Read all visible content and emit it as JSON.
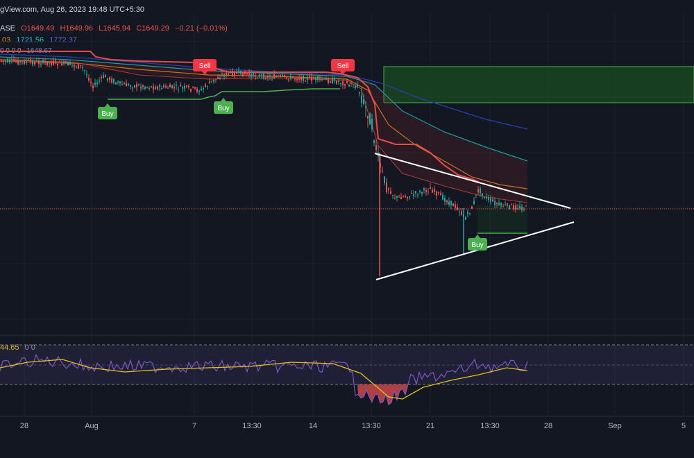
{
  "header": {
    "source_line": "gView.com, Aug 26, 2023 19:48 UTC+5:30",
    "symbol_suffix": "ASE",
    "open": "O1649.49",
    "high": "H1649.96",
    "low": "L1645.94",
    "close": "C1649.29",
    "change": "−0.21 (−0.01%)",
    "ma_a": ".03",
    "ma_b": "1721.56",
    "ma_c": "1772.37",
    "ma_row_zeros": "0 0 0 0",
    "ma_d": "1648.67",
    "rsi_value": "44.65",
    "rsi_zeros": "0 0"
  },
  "colors": {
    "background": "#131722",
    "bull": "#26a69a",
    "bear": "#ef5350",
    "buy_signal": "#4caf50",
    "sell_signal": "#f23645",
    "ema_fast": "#e84b4b",
    "ema_mid": "#c8731f",
    "ema_teal": "#1a9e9e",
    "ema_slow": "#2a3fb5",
    "rsi_line": "#7e57c2",
    "rsi_ma": "#e5c21a",
    "supply_zone": "#2e7d32",
    "trendline": "#ffffff"
  },
  "chart_data": {
    "type": "candlestick",
    "title": "",
    "time_axis_labels": [
      "28",
      "Aug",
      "7",
      "13:30",
      "14",
      "13:30",
      "21",
      "13:30",
      "28",
      "Sep",
      "5"
    ],
    "signals": [
      {
        "label": "Buy",
        "type": "buy",
        "t": 0.155
      },
      {
        "label": "Sell",
        "type": "sell",
        "t": 0.295
      },
      {
        "label": "Buy",
        "type": "buy",
        "t": 0.322
      },
      {
        "label": "Sell",
        "type": "sell",
        "t": 0.494
      },
      {
        "label": "Buy",
        "type": "buy",
        "t": 0.688
      }
    ],
    "pattern": "symmetrical triangle",
    "supply_zone": "green rectangle",
    "last_price": 1649.29,
    "rsi_panel": {
      "value": 44.65
    }
  }
}
